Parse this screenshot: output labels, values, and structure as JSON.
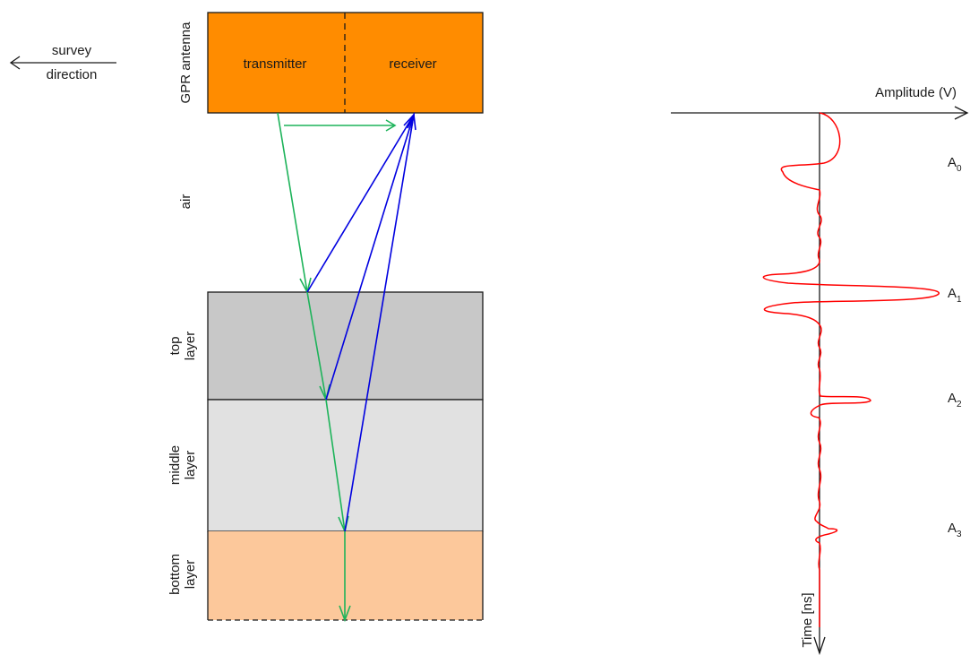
{
  "diagram": {
    "survey": {
      "line1": "survey",
      "line2": "direction"
    },
    "antenna": {
      "side_label": "GPR antenna",
      "transmitter": "transmitter",
      "receiver": "receiver",
      "fill_color": "#FF8C00"
    },
    "air_label": "air",
    "layers": [
      {
        "line1": "top",
        "line2": "layer",
        "fill_color": "#C8C8C8"
      },
      {
        "line1": "middle",
        "line2": "layer",
        "fill_color": "#E1E1E1"
      },
      {
        "line1": "bottom",
        "line2": "layer",
        "fill_color": "#FCC89B"
      }
    ],
    "ray_colors": {
      "transmitted": "#1DB35A",
      "reflected": "#0000E0"
    }
  },
  "trace": {
    "x_axis_label": "Amplitude (V)",
    "y_axis_label": "Time [ns]",
    "trace_color": "#FF0000",
    "peaks": [
      {
        "main": "A",
        "sub": "0"
      },
      {
        "main": "A",
        "sub": "1"
      },
      {
        "main": "A",
        "sub": "2"
      },
      {
        "main": "A",
        "sub": "3"
      }
    ]
  }
}
